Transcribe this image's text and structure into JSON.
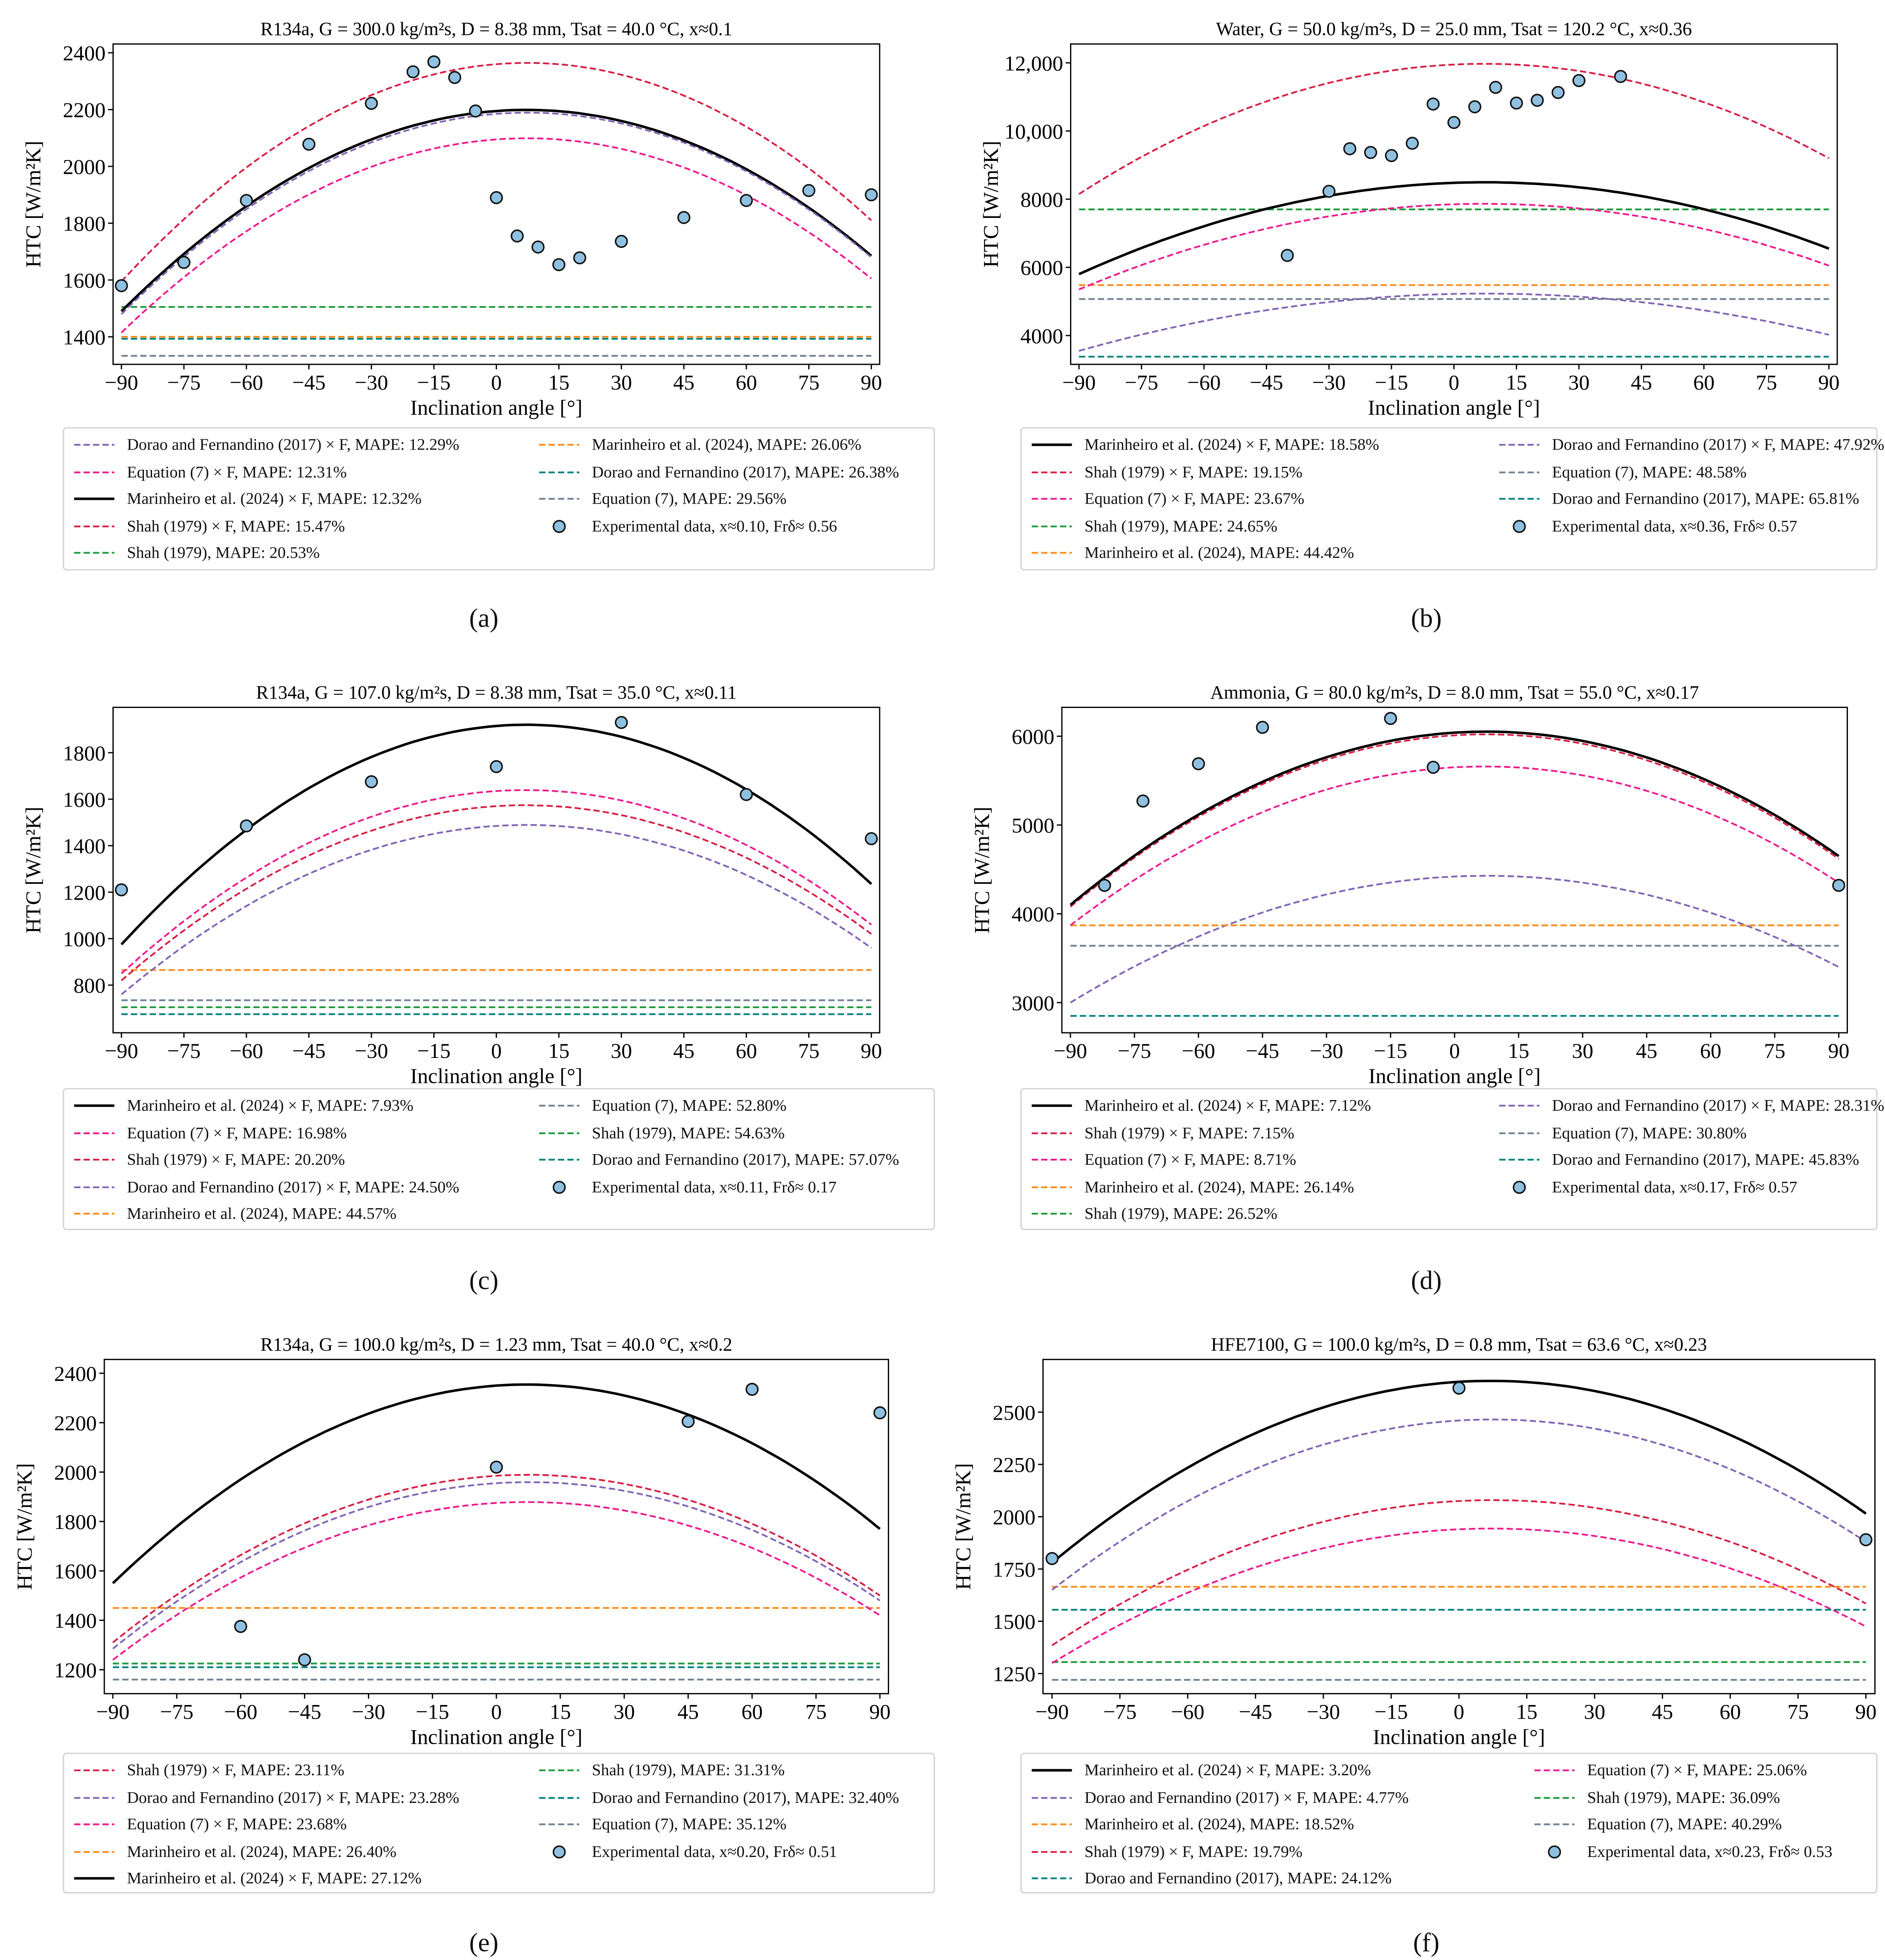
{
  "chart_data": [
    {
      "type": "line",
      "panel_label": "(a)",
      "title": "R134a, G = 300.0 kg/m²s, D = 8.38 mm, Tsat = 40.0 °C, x≈0.1",
      "xlabel": "Inclination angle [°]",
      "ylabel": "HTC [W/m²K]",
      "xlim": [
        -92,
        92
      ],
      "ylim": [
        1303,
        2431
      ],
      "xticks": [
        -90,
        -75,
        -60,
        -45,
        -30,
        -15,
        0,
        15,
        30,
        45,
        60,
        75,
        90
      ],
      "yticks": [
        1400,
        1600,
        1800,
        2000,
        2200,
        2400
      ],
      "ytick_labels": [
        "1400",
        "1600",
        "1800",
        "2000",
        "2200",
        "2400"
      ],
      "series": [
        {
          "name": "Dorao and Fernandino (2017) × F, MAPE: 12.29%",
          "color": "#8064b4",
          "style": "dashed",
          "curve_at_-90_0_90": [
            1480,
            2185,
            1680
          ]
        },
        {
          "name": "Equation (7) × F, MAPE: 12.31%",
          "color": "#ee1a8c",
          "style": "dashed",
          "curve_at_-90_0_90": [
            1415,
            2095,
            1605
          ]
        },
        {
          "name": "Marinheiro et al. (2024) × F, MAPE: 12.32%",
          "color": "#000000",
          "style": "solid",
          "curve_at_-90_0_90": [
            1490,
            2195,
            1685
          ]
        },
        {
          "name": "Shah (1979) × F, MAPE: 15.47%",
          "color": "#d81e44",
          "style": "dashed",
          "curve_at_-90_0_90": [
            1595,
            2360,
            1810
          ]
        },
        {
          "name": "Shah (1979), MAPE: 20.53%",
          "color": "#1e9a3c",
          "style": "dashed",
          "constant": 1505
        },
        {
          "name": "Marinheiro et al. (2024), MAPE: 26.06%",
          "color": "#ff8c1a",
          "style": "dashed",
          "constant": 1400
        },
        {
          "name": "Dorao and Fernandino (2017), MAPE: 26.38%",
          "color": "#00827f",
          "style": "dashed",
          "constant": 1393
        },
        {
          "name": "Equation (7), MAPE: 29.56%",
          "color": "#708090",
          "style": "dashed",
          "constant": 1333
        },
        {
          "name": "Experimental data, x≈0.10, Frδ≈ 0.56",
          "color": "#8fc0e0",
          "style": "marker",
          "points": [
            [
              -90,
              1580
            ],
            [
              -75,
              1662
            ],
            [
              -60,
              1880
            ],
            [
              -45,
              2078
            ],
            [
              -30,
              2222
            ],
            [
              -20,
              2333
            ],
            [
              -15,
              2368
            ],
            [
              -10,
              2313
            ],
            [
              -5,
              2195
            ],
            [
              0,
              1890
            ],
            [
              5,
              1755
            ],
            [
              10,
              1716
            ],
            [
              15,
              1654
            ],
            [
              20,
              1678
            ],
            [
              30,
              1736
            ],
            [
              45,
              1820
            ],
            [
              60,
              1880
            ],
            [
              75,
              1915
            ],
            [
              90,
              1900
            ]
          ]
        }
      ]
    },
    {
      "type": "line",
      "panel_label": "(b)",
      "title": "Water, G = 50.0 kg/m²s, D = 25.0 mm, Tsat = 120.2 °C, x≈0.36",
      "xlabel": "Inclination angle [°]",
      "ylabel": "HTC [W/m²K]",
      "xlim": [
        -92,
        92
      ],
      "ylim": [
        3154,
        12553
      ],
      "xticks": [
        -90,
        -75,
        -60,
        -45,
        -30,
        -15,
        0,
        15,
        30,
        45,
        60,
        75,
        90
      ],
      "yticks": [
        4000,
        6000,
        8000,
        10000,
        12000
      ],
      "ytick_labels": [
        "4000",
        "6000",
        "8000",
        "10,000",
        "12,000"
      ],
      "series": [
        {
          "name": "Marinheiro et al. (2024) × F, MAPE: 18.58%",
          "color": "#000000",
          "style": "solid",
          "curve_at_-90_0_90": [
            5800,
            8480,
            6550
          ]
        },
        {
          "name": "Shah (1979) × F, MAPE: 19.15%",
          "color": "#d81e44",
          "style": "dashed",
          "curve_at_-90_0_90": [
            8150,
            11950,
            9200
          ]
        },
        {
          "name": "Equation (7) × F, MAPE: 23.67%",
          "color": "#ee1a8c",
          "style": "dashed",
          "curve_at_-90_0_90": [
            5350,
            7850,
            6050
          ]
        },
        {
          "name": "Shah (1979), MAPE: 24.65%",
          "color": "#1e9a3c",
          "style": "dashed",
          "constant": 7700
        },
        {
          "name": "Marinheiro et al. (2024), MAPE: 44.42%",
          "color": "#ff8c1a",
          "style": "dashed",
          "constant": 5480
        },
        {
          "name": "Dorao and Fernandino (2017) × F, MAPE: 47.92%",
          "color": "#8064b4",
          "style": "dashed",
          "curve_at_-90_0_90": [
            3550,
            5220,
            4020
          ]
        },
        {
          "name": "Equation (7), MAPE: 48.58%",
          "color": "#708090",
          "style": "dashed",
          "constant": 5070
        },
        {
          "name": "Dorao and Fernandino (2017), MAPE: 65.81%",
          "color": "#00827f",
          "style": "dashed",
          "constant": 3380
        },
        {
          "name": "Experimental data, x≈0.36, Frδ≈ 0.57",
          "color": "#8fc0e0",
          "style": "marker",
          "points": [
            [
              -40,
              6350
            ],
            [
              -30,
              8230
            ],
            [
              -25,
              9480
            ],
            [
              -20,
              9370
            ],
            [
              -15,
              9280
            ],
            [
              -10,
              9640
            ],
            [
              -5,
              10790
            ],
            [
              0,
              10250
            ],
            [
              5,
              10710
            ],
            [
              10,
              11280
            ],
            [
              15,
              10820
            ],
            [
              20,
              10900
            ],
            [
              25,
              11130
            ],
            [
              30,
              11480
            ],
            [
              40,
              11600
            ]
          ]
        }
      ]
    },
    {
      "type": "line",
      "panel_label": "(c)",
      "title": "R134a, G = 107.0 kg/m²s, D = 8.38 mm, Tsat = 35.0 °C, x≈0.11",
      "xlabel": "Inclination angle [°]",
      "ylabel": "HTC [W/m²K]",
      "xlim": [
        -92,
        92
      ],
      "ylim": [
        595,
        1995
      ],
      "xticks": [
        -90,
        -75,
        -60,
        -45,
        -30,
        -15,
        0,
        15,
        30,
        45,
        60,
        75,
        90
      ],
      "yticks": [
        800,
        1000,
        1200,
        1400,
        1600,
        1800
      ],
      "ytick_labels": [
        "800",
        "1000",
        "1200",
        "1400",
        "1600",
        "1800"
      ],
      "series": [
        {
          "name": "Marinheiro et al. (2024) × F, MAPE: 7.93%",
          "color": "#000000",
          "style": "solid",
          "curve_at_-90_0_90": [
            975,
            1915,
            1235
          ]
        },
        {
          "name": "Equation (7) × F, MAPE: 16.98%",
          "color": "#ee1a8c",
          "style": "dashed",
          "curve_at_-90_0_90": [
            850,
            1635,
            1060
          ]
        },
        {
          "name": "Shah (1979) × F, MAPE: 20.20%",
          "color": "#d81e44",
          "style": "dashed",
          "curve_at_-90_0_90": [
            820,
            1570,
            1020
          ]
        },
        {
          "name": "Dorao and Fernandino (2017) × F, MAPE: 24.50%",
          "color": "#8064b4",
          "style": "dashed",
          "curve_at_-90_0_90": [
            760,
            1485,
            960
          ]
        },
        {
          "name": "Marinheiro et al. (2024), MAPE: 44.57%",
          "color": "#ff8c1a",
          "style": "dashed",
          "constant": 865
        },
        {
          "name": "Equation (7), MAPE: 52.80%",
          "color": "#708090",
          "style": "dashed",
          "constant": 735
        },
        {
          "name": "Shah (1979), MAPE: 54.63%",
          "color": "#1e9a3c",
          "style": "dashed",
          "constant": 705
        },
        {
          "name": "Dorao and Fernandino (2017), MAPE: 57.07%",
          "color": "#00827f",
          "style": "dashed",
          "constant": 675
        },
        {
          "name": "Experimental data, x≈0.11, Frδ≈ 0.17",
          "color": "#8fc0e0",
          "style": "marker",
          "points": [
            [
              -90,
              1210
            ],
            [
              -60,
              1485
            ],
            [
              -30,
              1675
            ],
            [
              0,
              1740
            ],
            [
              30,
              1930
            ],
            [
              60,
              1620
            ],
            [
              90,
              1430
            ]
          ]
        }
      ]
    },
    {
      "type": "line",
      "panel_label": "(d)",
      "title": "Ammonia, G = 80.0 kg/m²s, D = 8.0 mm, Tsat = 55.0 °C, x≈0.17",
      "xlabel": "Inclination angle [°]",
      "ylabel": "HTC [W/m²K]",
      "xlim": [
        -92,
        92
      ],
      "ylim": [
        2660,
        6325
      ],
      "xticks": [
        -90,
        -75,
        -60,
        -45,
        -30,
        -15,
        0,
        15,
        30,
        45,
        60,
        75,
        90
      ],
      "yticks": [
        3000,
        4000,
        5000,
        6000
      ],
      "ytick_labels": [
        "3000",
        "4000",
        "5000",
        "6000"
      ],
      "series": [
        {
          "name": "Marinheiro et al. (2024) × F, MAPE: 7.12%",
          "color": "#000000",
          "style": "solid",
          "curve_at_-90_0_90": [
            4100,
            6040,
            4650
          ]
        },
        {
          "name": "Shah (1979) × F, MAPE: 7.15%",
          "color": "#d81e44",
          "style": "dashed",
          "curve_at_-90_0_90": [
            4080,
            6010,
            4620
          ]
        },
        {
          "name": "Equation (7) × F, MAPE: 8.71%",
          "color": "#ee1a8c",
          "style": "dashed",
          "curve_at_-90_0_90": [
            3870,
            5650,
            4350
          ]
        },
        {
          "name": "Marinheiro et al. (2024), MAPE: 26.14%",
          "color": "#ff8c1a",
          "style": "dashed",
          "constant": 3870
        },
        {
          "name": "Shah (1979), MAPE: 26.52%",
          "color": "#1e9a3c",
          "style": "dashed",
          "constant": 3870
        },
        {
          "name": "Dorao and Fernandino (2017) × F, MAPE: 28.31%",
          "color": "#8064b4",
          "style": "dashed",
          "curve_at_-90_0_90": [
            3000,
            4420,
            3400
          ]
        },
        {
          "name": "Equation (7), MAPE: 30.80%",
          "color": "#708090",
          "style": "dashed",
          "constant": 3640
        },
        {
          "name": "Dorao and Fernandino (2017), MAPE: 45.83%",
          "color": "#00827f",
          "style": "dashed",
          "constant": 2850
        },
        {
          "name": "Experimental data, x≈0.17, Frδ≈ 0.57",
          "color": "#8fc0e0",
          "style": "marker",
          "points": [
            [
              -82,
              4320
            ],
            [
              -73,
              5270
            ],
            [
              -60,
              5690
            ],
            [
              -45,
              6100
            ],
            [
              -15,
              6200
            ],
            [
              -5,
              5650
            ],
            [
              90,
              4320
            ]
          ]
        }
      ]
    },
    {
      "type": "line",
      "panel_label": "(e)",
      "title": "R134a, G = 100.0 kg/m²s, D = 1.23 mm, Tsat = 40.0 °C, x≈0.2",
      "xlabel": "Inclination angle [°]",
      "ylabel": "HTC [W/m²K]",
      "xlim": [
        -92,
        92
      ],
      "ylim": [
        1103,
        2456
      ],
      "xticks": [
        -90,
        -75,
        -60,
        -45,
        -30,
        -15,
        0,
        15,
        30,
        45,
        60,
        75,
        90
      ],
      "yticks": [
        1200,
        1400,
        1600,
        1800,
        2000,
        2200,
        2400
      ],
      "ytick_labels": [
        "1200",
        "1400",
        "1600",
        "1800",
        "2000",
        "2200",
        "2400"
      ],
      "series": [
        {
          "name": "Shah (1979) × F, MAPE: 23.11%",
          "color": "#d81e44",
          "style": "dashed",
          "curve_at_-90_0_90": [
            1310,
            1985,
            1500
          ]
        },
        {
          "name": "Dorao and Fernandino (2017) × F, MAPE: 23.28%",
          "color": "#8064b4",
          "style": "dashed",
          "curve_at_-90_0_90": [
            1285,
            1955,
            1480
          ]
        },
        {
          "name": "Equation (7) × F, MAPE: 23.68%",
          "color": "#ee1a8c",
          "style": "dashed",
          "curve_at_-90_0_90": [
            1240,
            1875,
            1420
          ]
        },
        {
          "name": "Marinheiro et al. (2024), MAPE: 26.40%",
          "color": "#ff8c1a",
          "style": "dashed",
          "constant": 1450
        },
        {
          "name": "Marinheiro et al. (2024) × F, MAPE: 27.12%",
          "color": "#000000",
          "style": "solid",
          "curve_at_-90_0_90": [
            1550,
            2350,
            1770
          ]
        },
        {
          "name": "Shah (1979), MAPE: 31.31%",
          "color": "#1e9a3c",
          "style": "dashed",
          "constant": 1225
        },
        {
          "name": "Dorao and Fernandino (2017), MAPE: 32.40%",
          "color": "#00827f",
          "style": "dashed",
          "constant": 1210
        },
        {
          "name": "Equation (7), MAPE: 35.12%",
          "color": "#708090",
          "style": "dashed",
          "constant": 1160
        },
        {
          "name": "Experimental data, x≈0.20, Frδ≈ 0.51",
          "color": "#8fc0e0",
          "style": "marker",
          "points": [
            [
              -60,
              1375
            ],
            [
              -45,
              1240
            ],
            [
              0,
              2020
            ],
            [
              45,
              2205
            ],
            [
              60,
              2335
            ],
            [
              90,
              2240
            ]
          ]
        }
      ]
    },
    {
      "type": "line",
      "panel_label": "(f)",
      "title": "HFE7100, G = 100.0 kg/m²s, D = 0.8 mm, Tsat = 63.6 °C, x≈0.23",
      "xlabel": "Inclination angle [°]",
      "ylabel": "HTC [W/m²K]",
      "xlim": [
        -92,
        92
      ],
      "ylim": [
        1154,
        2752
      ],
      "xticks": [
        -90,
        -75,
        -60,
        -45,
        -30,
        -15,
        0,
        15,
        30,
        45,
        60,
        75,
        90
      ],
      "yticks": [
        1250,
        1500,
        1750,
        2000,
        2250,
        2500
      ],
      "ytick_labels": [
        "1250",
        "1500",
        "1750",
        "2000",
        "2250",
        "2500"
      ],
      "series": [
        {
          "name": "Marinheiro et al. (2024) × F, MAPE: 3.20%",
          "color": "#000000",
          "style": "solid",
          "curve_at_-90_0_90": [
            1780,
            2645,
            2015
          ]
        },
        {
          "name": "Dorao and Fernandino (2017) × F, MAPE: 4.77%",
          "color": "#8064b4",
          "style": "dashed",
          "curve_at_-90_0_90": [
            1650,
            2460,
            1880
          ]
        },
        {
          "name": "Marinheiro et al. (2024), MAPE: 18.52%",
          "color": "#ff8c1a",
          "style": "dashed",
          "constant": 1665
        },
        {
          "name": "Shah (1979) × F, MAPE: 19.79%",
          "color": "#d81e44",
          "style": "dashed",
          "curve_at_-90_0_90": [
            1385,
            2075,
            1585
          ]
        },
        {
          "name": "Dorao and Fernandino (2017), MAPE: 24.12%",
          "color": "#00827f",
          "style": "dashed",
          "constant": 1555
        },
        {
          "name": "Equation (7) × F, MAPE: 25.06%",
          "color": "#ee1a8c",
          "style": "dashed",
          "curve_at_-90_0_90": [
            1300,
            1940,
            1475
          ]
        },
        {
          "name": "Shah (1979), MAPE: 36.09%",
          "color": "#1e9a3c",
          "style": "dashed",
          "constant": 1305
        },
        {
          "name": "Equation (7), MAPE: 40.29%",
          "color": "#708090",
          "style": "dashed",
          "constant": 1220
        },
        {
          "name": "Experimental data, x≈0.23, Frδ≈ 0.53",
          "color": "#8fc0e0",
          "style": "marker",
          "points": [
            [
              -90,
              1800
            ],
            [
              0,
              2615
            ],
            [
              90,
              1890
            ]
          ]
        }
      ]
    }
  ]
}
